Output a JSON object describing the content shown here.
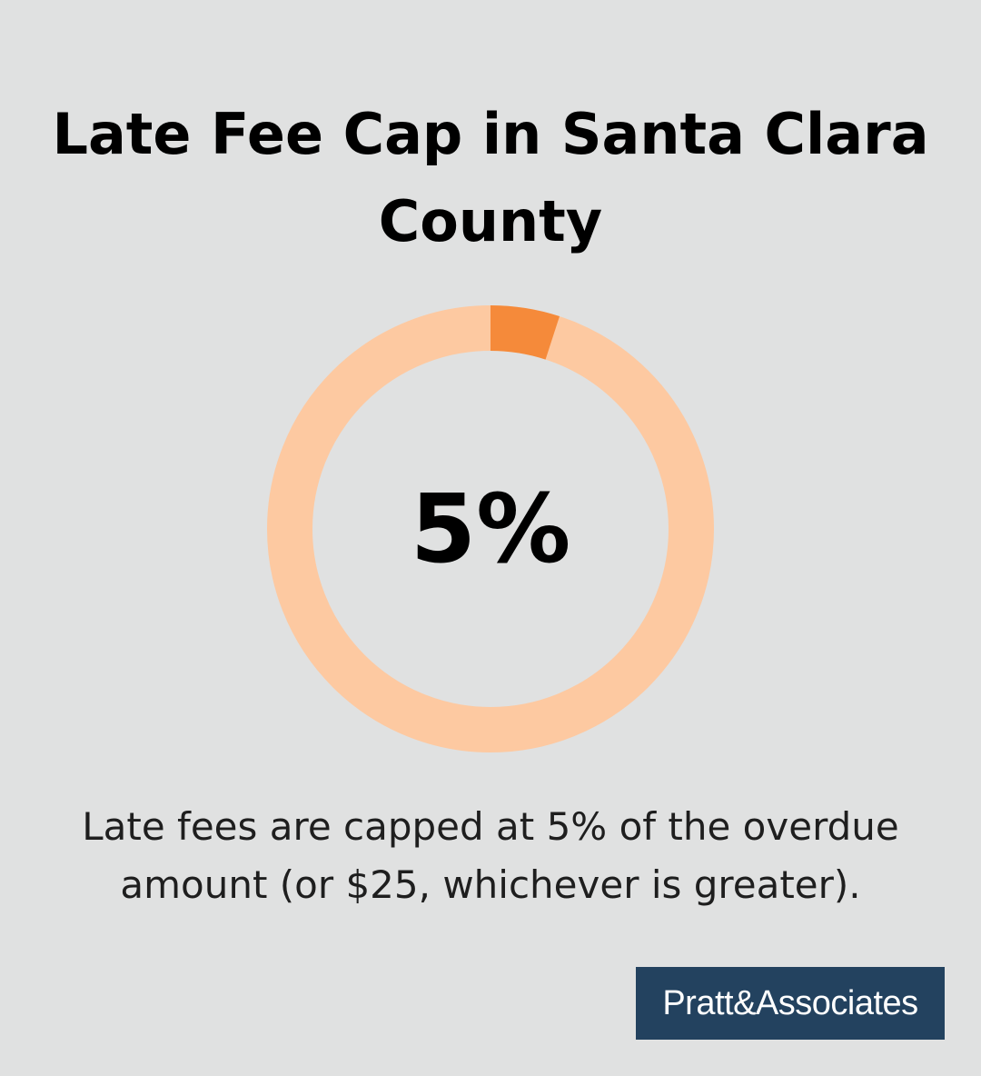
{
  "chart_data": {
    "type": "donut",
    "title": "Late Fee Cap in Santa Clara County",
    "values": [
      5
    ],
    "value_labels": [
      "5%"
    ],
    "ylim": [
      0,
      100
    ],
    "color": "#f58a3a",
    "track_color": "#fdc9a1",
    "description": "Late fees are capped at 5% of the overdue amount (or $25, whichever is greater).",
    "logo": "Pratt&Associates"
  }
}
